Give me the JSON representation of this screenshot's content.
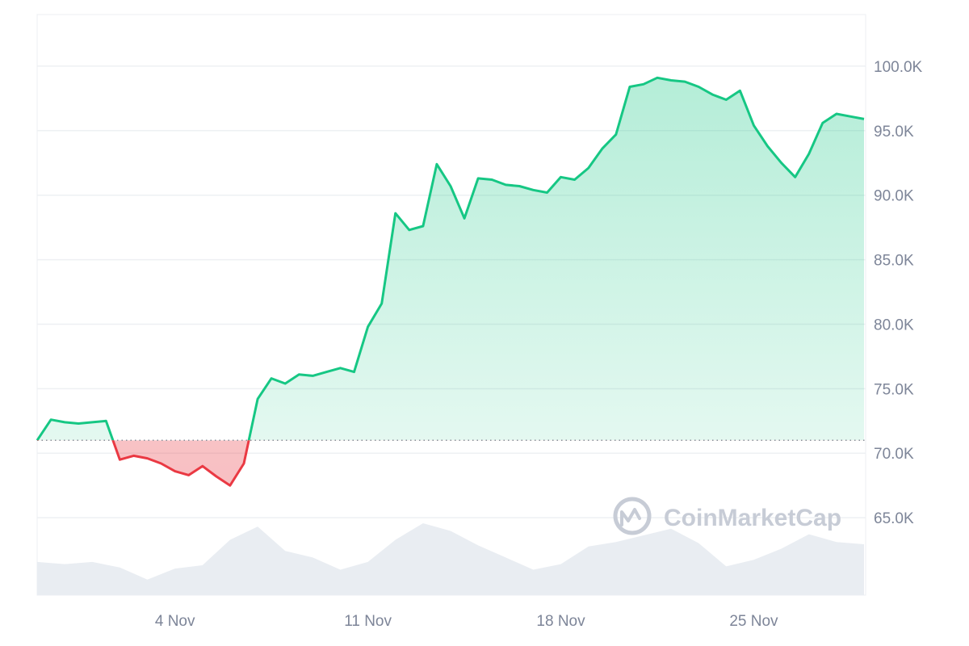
{
  "chart_data": {
    "type": "area",
    "watermark": "CoinMarketCap",
    "baseline": 71000,
    "ylim": [
      59000,
      104000
    ],
    "y_ticks": [
      {
        "value": 100000,
        "label": "100.0K"
      },
      {
        "value": 95000,
        "label": "95.0K"
      },
      {
        "value": 90000,
        "label": "90.0K"
      },
      {
        "value": 85000,
        "label": "85.0K"
      },
      {
        "value": 80000,
        "label": "80.0K"
      },
      {
        "value": 75000,
        "label": "75.0K"
      },
      {
        "value": 70000,
        "label": "70.0K"
      },
      {
        "value": 65000,
        "label": "65.0K"
      }
    ],
    "xlim": [
      "2024-10-30",
      "2024-11-29"
    ],
    "x_ticks": [
      {
        "date": "2024-11-04",
        "label": "4 Nov"
      },
      {
        "date": "2024-11-11",
        "label": "11 Nov"
      },
      {
        "date": "2024-11-18",
        "label": "18 Nov"
      },
      {
        "date": "2024-11-25",
        "label": "25 Nov"
      }
    ],
    "colors": {
      "up": "#16c784",
      "down": "#ea3943",
      "volume": "#e9edf2",
      "grid": "#eef0f3",
      "baseline": "#8a8f99"
    },
    "series": [
      {
        "x": [
          "2024-10-30",
          "2024-10-30 12:00",
          "2024-10-31",
          "2024-10-31 12:00",
          "2024-11-01",
          "2024-11-01 12:00",
          "2024-11-02",
          "2024-11-02 12:00",
          "2024-11-03",
          "2024-11-03 12:00",
          "2024-11-04",
          "2024-11-04 12:00",
          "2024-11-05",
          "2024-11-05 12:00",
          "2024-11-06",
          "2024-11-06 12:00",
          "2024-11-07",
          "2024-11-07 12:00",
          "2024-11-08",
          "2024-11-08 12:00",
          "2024-11-09",
          "2024-11-09 12:00",
          "2024-11-10",
          "2024-11-10 12:00",
          "2024-11-11",
          "2024-11-11 12:00",
          "2024-11-12",
          "2024-11-12 12:00",
          "2024-11-13",
          "2024-11-13 12:00",
          "2024-11-14",
          "2024-11-14 12:00",
          "2024-11-15",
          "2024-11-15 12:00",
          "2024-11-16",
          "2024-11-16 12:00",
          "2024-11-17",
          "2024-11-17 12:00",
          "2024-11-18",
          "2024-11-18 12:00",
          "2024-11-19",
          "2024-11-19 12:00",
          "2024-11-20",
          "2024-11-20 12:00",
          "2024-11-21",
          "2024-11-21 12:00",
          "2024-11-22",
          "2024-11-22 12:00",
          "2024-11-23",
          "2024-11-23 12:00",
          "2024-11-24",
          "2024-11-24 12:00",
          "2024-11-25",
          "2024-11-25 12:00",
          "2024-11-26",
          "2024-11-26 12:00",
          "2024-11-27",
          "2024-11-27 12:00",
          "2024-11-28",
          "2024-11-28 12:00",
          "2024-11-29"
        ],
        "values": [
          71000,
          72600,
          72400,
          72300,
          72400,
          72500,
          69500,
          69800,
          69600,
          69200,
          68600,
          68300,
          69000,
          68200,
          67500,
          69200,
          74200,
          75800,
          75400,
          76100,
          76000,
          76300,
          76600,
          76300,
          79800,
          81600,
          88600,
          87300,
          87600,
          92400,
          90700,
          88200,
          91300,
          91200,
          90800,
          90700,
          90400,
          90200,
          91400,
          91200,
          92100,
          93600,
          94700,
          98400,
          98600,
          99100,
          98900,
          98800,
          98400,
          97800,
          97400,
          98100,
          95400,
          93800,
          92500,
          91400,
          93200,
          95600,
          96300,
          96100,
          95900
        ]
      }
    ],
    "volume": {
      "x": [
        "2024-10-30",
        "2024-10-31",
        "2024-11-01",
        "2024-11-02",
        "2024-11-03",
        "2024-11-04",
        "2024-11-05",
        "2024-11-06",
        "2024-11-07",
        "2024-11-08",
        "2024-11-09",
        "2024-11-10",
        "2024-11-11",
        "2024-11-12",
        "2024-11-13",
        "2024-11-14",
        "2024-11-15",
        "2024-11-16",
        "2024-11-17",
        "2024-11-18",
        "2024-11-19",
        "2024-11-20",
        "2024-11-21",
        "2024-11-22",
        "2024-11-23",
        "2024-11-24",
        "2024-11-25",
        "2024-11-26",
        "2024-11-27",
        "2024-11-28",
        "2024-11-29"
      ],
      "values": [
        0.3,
        0.28,
        0.3,
        0.25,
        0.14,
        0.24,
        0.27,
        0.5,
        0.62,
        0.4,
        0.34,
        0.23,
        0.3,
        0.5,
        0.65,
        0.58,
        0.45,
        0.34,
        0.23,
        0.28,
        0.44,
        0.48,
        0.54,
        0.6,
        0.47,
        0.26,
        0.32,
        0.42,
        0.55,
        0.48,
        0.46
      ]
    }
  }
}
